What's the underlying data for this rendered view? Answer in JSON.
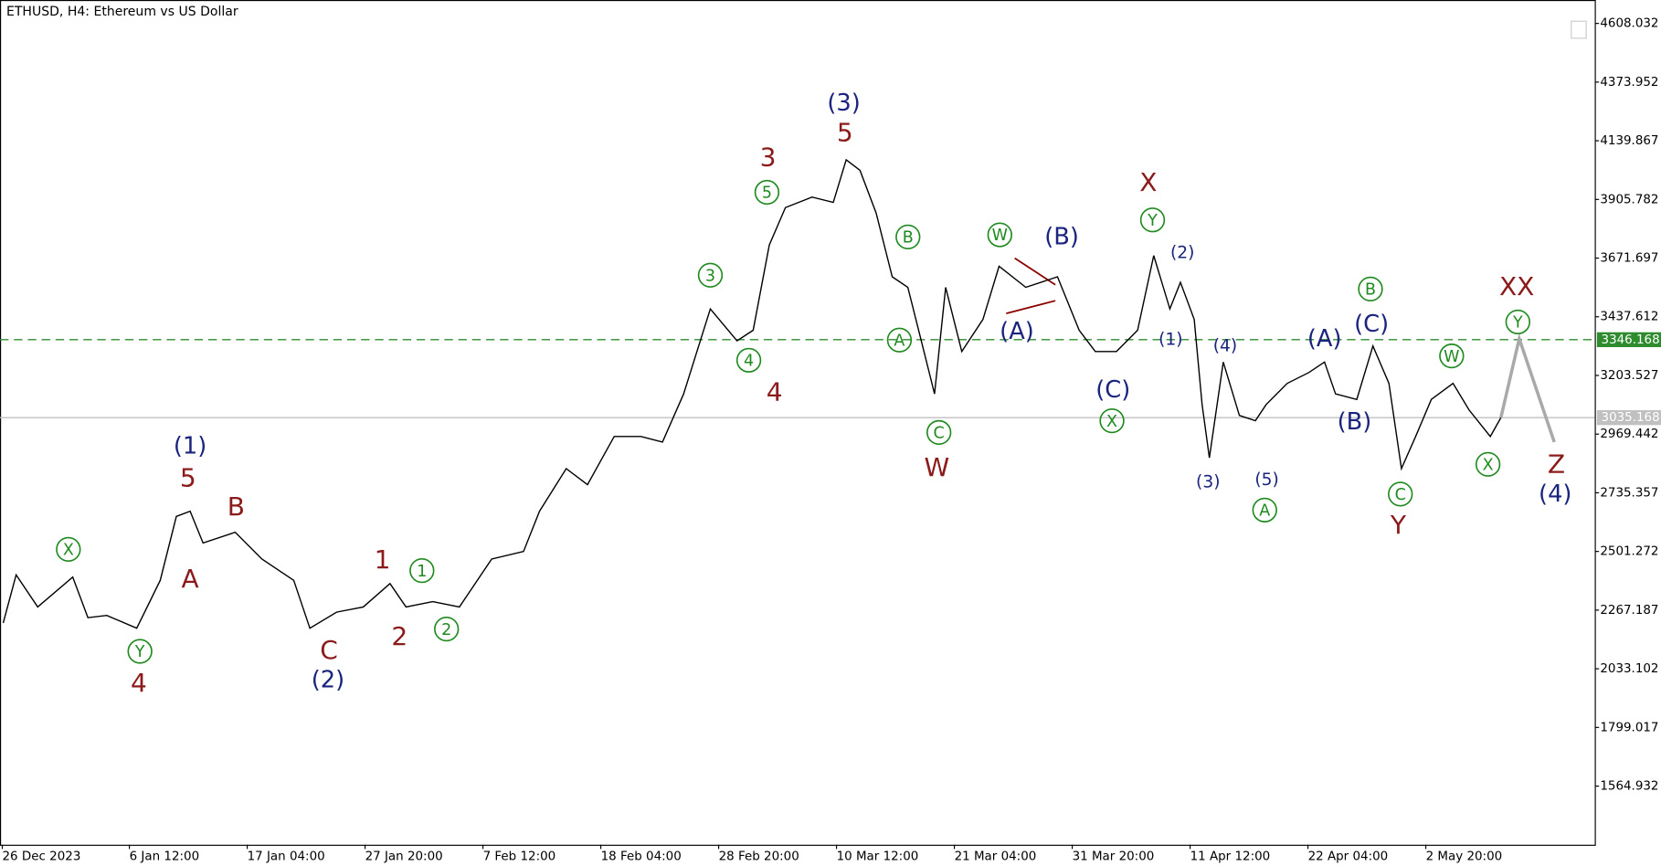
{
  "chart_data": {
    "type": "line",
    "title": "ETHUSD, H4:  Ethereum vs US Dollar",
    "xlim": [
      -5,
      3459
    ],
    "xticks": [
      {
        "value": 0,
        "label": "26 Dec 2023"
      },
      {
        "value": 276,
        "label": "6 Jan 12:00"
      },
      {
        "value": 532,
        "label": "17 Jan 04:00"
      },
      {
        "value": 788,
        "label": "27 Jan 20:00"
      },
      {
        "value": 1044,
        "label": "7 Feb 12:00"
      },
      {
        "value": 1300,
        "label": "18 Feb 04:00"
      },
      {
        "value": 1556,
        "label": "28 Feb 20:00"
      },
      {
        "value": 1812,
        "label": "10 Mar 12:00"
      },
      {
        "value": 2068,
        "label": "21 Mar 04:00"
      },
      {
        "value": 2324,
        "label": "31 Mar 20:00"
      },
      {
        "value": 2580,
        "label": "11 Apr 12:00"
      },
      {
        "value": 2836,
        "label": "22 Apr 04:00"
      },
      {
        "value": 3092,
        "label": "2 May 20:00"
      }
    ],
    "ylim": [
      1331,
      4701.5
    ],
    "yticks": [
      4608.032,
      4373.952,
      4139.867,
      3905.782,
      3671.697,
      3437.612,
      3203.527,
      2969.442,
      2735.357,
      2501.272,
      2267.187,
      2033.102,
      1799.017,
      1564.932
    ],
    "levels": [
      {
        "value": 3346.168,
        "color": "#2e8b2e"
      },
      {
        "value": 3035.168,
        "color": "#c0c0c0"
      }
    ],
    "series": [
      {
        "color": "#000000",
        "x": [
          2,
          30,
          77,
          153,
          186,
          227,
          292,
          343,
          378,
          408,
          436,
          506,
          564,
          633,
          668,
          726,
          784,
          842,
          877,
          935,
          993,
          1063,
          1132,
          1167,
          1225,
          1271,
          1329,
          1387,
          1434,
          1480,
          1538,
          1596,
          1631,
          1666,
          1701,
          1759,
          1805,
          1833,
          1863,
          1898,
          1933,
          1967,
          2002,
          2025,
          2049,
          2084,
          2130,
          2165,
          2223,
          2292,
          2339,
          2374,
          2420,
          2466,
          2501,
          2536,
          2559,
          2589,
          2606,
          2622,
          2652,
          2687,
          2722,
          2745,
          2791,
          2838,
          2872,
          2896,
          2942,
          2977,
          3012,
          3039,
          3070,
          3104,
          3151,
          3186,
          3232,
          3255
        ],
        "values": [
          2216,
          2408,
          2280,
          2399,
          2237,
          2246,
          2195,
          2386,
          2641,
          2662,
          2535,
          2578,
          2471,
          2386,
          2195,
          2259,
          2280,
          2373,
          2280,
          2301,
          2280,
          2471,
          2501,
          2662,
          2832,
          2768,
          2960,
          2960,
          2938,
          3130,
          3469,
          3342,
          3384,
          3724,
          3873,
          3915,
          3894,
          4064,
          4022,
          3852,
          3597,
          3555,
          3299,
          3130,
          3555,
          3299,
          3427,
          3639,
          3555,
          3597,
          3384,
          3299,
          3299,
          3384,
          3682,
          3469,
          3575,
          3427,
          3087,
          2875,
          3257,
          3044,
          3023,
          3087,
          3172,
          3215,
          3257,
          3130,
          3108,
          3321,
          3172,
          2832,
          2960,
          3108,
          3172,
          3066,
          2960,
          3035
        ]
      },
      {
        "color": "#a9a9a9",
        "x": [
          3255,
          3295,
          3371
        ],
        "values": [
          3035,
          3350,
          2938
        ]
      }
    ],
    "annotations": [
      "(1)",
      "5",
      "A",
      "B",
      "X",
      "Y",
      "4",
      "C",
      "(2)",
      "1",
      "1",
      "2",
      "2",
      "3",
      "4",
      "4",
      "5",
      "3",
      "(3)",
      "5",
      "B",
      "A",
      "C",
      "W",
      "W",
      "(B)",
      "(A)",
      "(C)",
      "X",
      "X",
      "Y",
      "(2)",
      "(1)",
      "(4)",
      "(3)",
      "(5)",
      "A",
      "(A)",
      "B",
      "(C)",
      "(B)",
      "C",
      "Y",
      "W",
      "X",
      "XX",
      "Y",
      "Z",
      "(4)"
    ]
  }
}
